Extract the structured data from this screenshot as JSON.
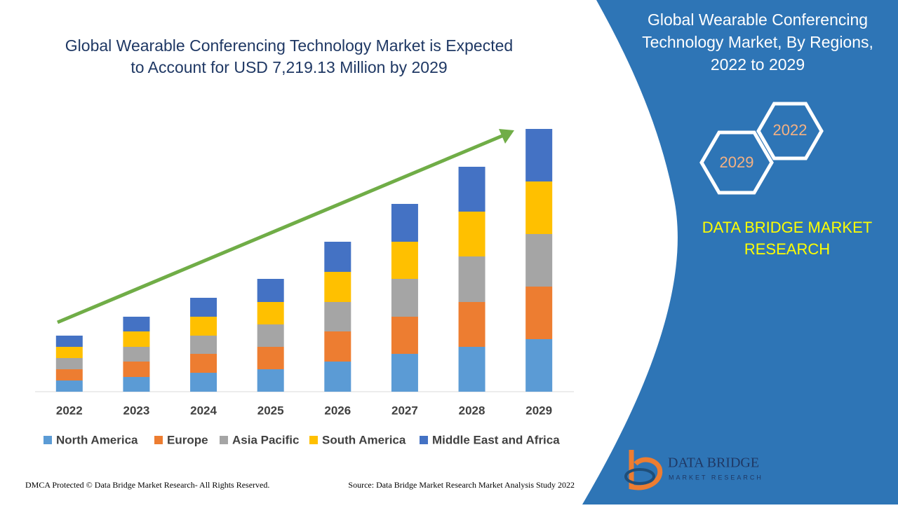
{
  "chart_data": {
    "type": "bar",
    "stacked": true,
    "title": [
      "Global Wearable Conferencing Technology Market is Expected",
      "to Account for USD 7,219.13 Million by 2029"
    ],
    "categories": [
      "2022",
      "2023",
      "2024",
      "2025",
      "2026",
      "2027",
      "2028",
      "2029"
    ],
    "series": [
      {
        "name": "North America",
        "color": "#5b9bd5",
        "values": [
          16,
          21,
          27,
          32,
          43,
          54,
          64,
          75
        ]
      },
      {
        "name": "Europe",
        "color": "#ed7d31",
        "values": [
          16,
          22,
          27,
          32,
          43,
          53,
          64,
          75
        ]
      },
      {
        "name": "Asia Pacific",
        "color": "#a5a5a5",
        "values": [
          16,
          21,
          26,
          32,
          42,
          54,
          65,
          75
        ]
      },
      {
        "name": "South America",
        "color": "#ffc000",
        "values": [
          16,
          22,
          27,
          32,
          43,
          53,
          64,
          75
        ]
      },
      {
        "name": "Middle East and Africa",
        "color": "#4472c4",
        "values": [
          16,
          21,
          27,
          33,
          43,
          54,
          64,
          75
        ]
      }
    ]
  },
  "panel": {
    "title": [
      "Global Wearable Conferencing",
      "Technology Market, By Regions,",
      "2022 to 2029"
    ],
    "hex_start": "2022",
    "hex_end": "2029",
    "brand": [
      "DATA BRIDGE MARKET",
      "RESEARCH"
    ]
  },
  "logo": {
    "name": "DATA BRIDGE",
    "tagline": "MARKET RESEARCH"
  },
  "footer": {
    "copyright": "DMCA Protected © Data Bridge Market Research- All Rights Reserved.",
    "source": "Source: Data Bridge Market Research Market Analysis Study 2022"
  }
}
